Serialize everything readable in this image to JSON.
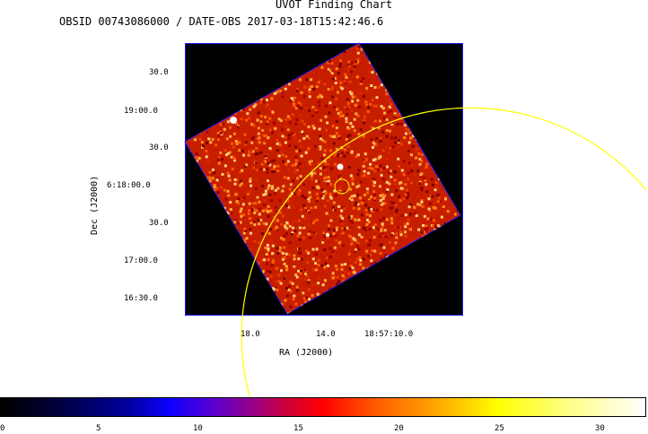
{
  "title": "UVOT Finding Chart",
  "subtitle": "OBSID 00743086000 / DATE-OBS 2017-03-18T15:42:46.6",
  "dec_axis": {
    "label": "Dec (J2000)",
    "ticks": [
      "30.0",
      "19:00.0",
      "30.0",
      "6:18:00.0",
      "30.0",
      "17:00.0",
      "16:30.0"
    ]
  },
  "ra_axis": {
    "label": "RA (J2000)",
    "ticks": [
      "18.0",
      "14.0",
      "18:57:10.0"
    ]
  },
  "colorbar": {
    "ticks": [
      "0",
      "5",
      "10",
      "15",
      "20",
      "25",
      "30"
    ]
  },
  "colors": {
    "frame": "#1a1aff",
    "overlay_circle": "#ffff00",
    "image_low": "#b00000",
    "image_high": "#ffd27a"
  }
}
